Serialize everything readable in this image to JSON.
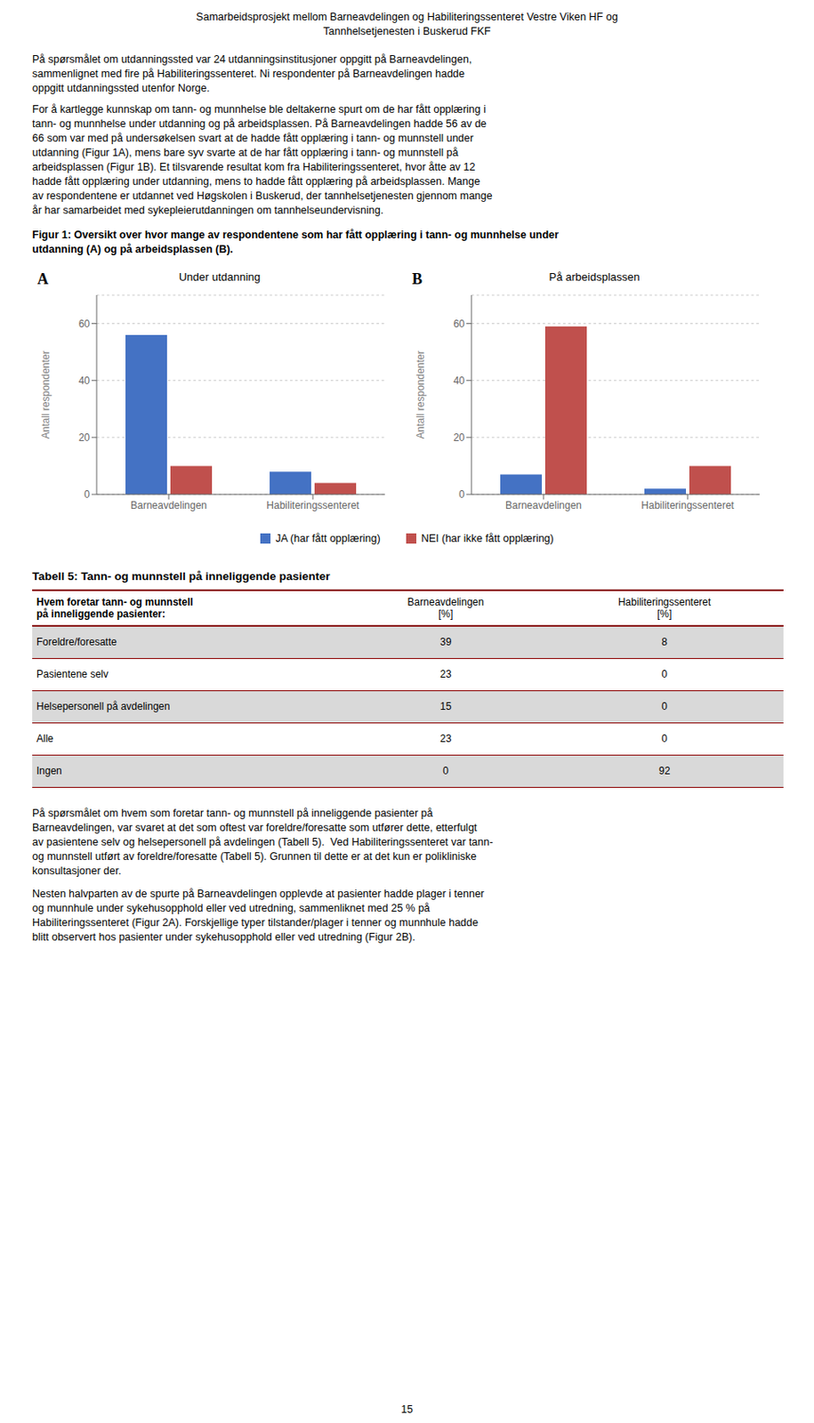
{
  "title": [
    "Samarbeidsprosjekt mellom Barneavdelingen og Habiliteringssenteret Vestre Viken HF og",
    "Tannhelsetjenesten i Buskerud FKF"
  ],
  "paragraphs_before": [
    [
      "På spørsmålet om utdanningssted var 24 utdanningsinstitusjoner oppgitt på Barneavdelingen,",
      "sammenlignet med fire på Habiliteringssenteret. Ni respondenter på Barneavdelingen hadde",
      "oppgitt utdanningssted utenfor Norge."
    ],
    [
      "For å kartlegge kunnskap om tann- og munnhelse ble deltakerne spurt om de har fått opplæring i",
      "tann- og munnhelse under utdanning og på arbeidsplassen. På Barneavdelingen hadde 56 av de",
      "66 som var med på undersøkelsen svart at de hadde fått opplæring i tann- og munnstell under",
      "utdanning (Figur 1A), mens bare syv svarte at de har fått opplæring i tann- og munnstell på",
      "arbeidsplassen (Figur 1B). Et tilsvarende resultat kom fra Habiliteringssenteret, hvor åtte av 12",
      "hadde fått opplæring under utdanning, mens to hadde fått opplæring på arbeidsplassen. Mange",
      "av respondentene er utdannet ved Høgskolen i Buskerud, der tannhelsetjenesten gjennom mange",
      "år har samarbeidet med sykepleierutdanningen om tannhelseundervisning."
    ]
  ],
  "caption": [
    "Figur 1: Oversikt over hvor mange av respondentene som har fått opplæring i tann- og munnhelse under",
    "utdanning (A) og på arbeidsplassen (B)."
  ],
  "chart_data": [
    {
      "type": "bar",
      "title": "Under utdanning",
      "annotations": [
        "A"
      ],
      "categories": [
        "Barneavdelingen",
        "Habiliteringssenteret"
      ],
      "y_label": "Antall respondenter",
      "series": [
        {
          "name": "JA (har fått opplæring)",
          "color": "#4472C4",
          "values": [
            56,
            8
          ]
        },
        {
          "name": "NEI (har ikke fått opplæring)",
          "color": "#C0504D",
          "values": [
            10,
            4
          ]
        }
      ],
      "ylim": [
        0,
        70
      ],
      "yticks": [
        0,
        20,
        40,
        60
      ],
      "grid": true,
      "legend": "bottom"
    },
    {
      "type": "bar",
      "title": "På arbeidsplassen",
      "annotations": [
        "B"
      ],
      "categories": [
        "Barneavdelingen",
        "Habiliteringssenteret"
      ],
      "y_label": "Antall respondenter",
      "series": [
        {
          "name": "JA (har fått opplæring)",
          "color": "#4472C4",
          "values": [
            7,
            2
          ]
        },
        {
          "name": "NEI (har ikke fått opplæring)",
          "color": "#C0504D",
          "values": [
            59,
            10
          ]
        }
      ],
      "ylim": [
        0,
        70
      ],
      "yticks": [
        0,
        20,
        40,
        60
      ],
      "grid": true,
      "legend": "bottom"
    }
  ],
  "table": {
    "title": "Tabell 5: Tann- og munnstell på inneliggende pasienter",
    "header": [
      [
        "Hvem foretar tann- og munnstell",
        "på inneliggende pasienter:"
      ],
      [
        "Barneavdelingen",
        "[%]"
      ],
      [
        "Habiliteringssenteret",
        "[%]"
      ]
    ],
    "rows": [
      [
        "Foreldre/foresatte",
        "39",
        "8"
      ],
      [
        "Pasientene selv",
        "23",
        "0"
      ],
      [
        "Helsepersonell på avdelingen",
        "15",
        "0"
      ],
      [
        "Alle",
        "23",
        "0"
      ],
      [
        "Ingen",
        "0",
        "92"
      ]
    ]
  },
  "paragraphs_after": [
    [
      "På spørsmålet om hvem som foretar tann- og munnstell på inneliggende pasienter på",
      "Barneavdelingen, var svaret at det som oftest var foreldre/foresatte som utfører dette, etterfulgt",
      "av pasientene selv og helsepersonell på avdelingen (Tabell 5).  Ved Habiliteringssenteret var tann-",
      "og munnstell utført av foreldre/foresatte (Tabell 5). Grunnen til dette er at det kun er polikliniske",
      "konsultasjoner der."
    ],
    [
      "Nesten halvparten av de spurte på Barneavdelingen opplevde at pasienter hadde plager i tenner",
      "og munnhule under sykehusopphold eller ved utredning, sammenliknet med 25 % på",
      "Habiliteringssenteret (Figur 2A). Forskjellige typer tilstander/plager i tenner og munnhule hadde",
      "blitt observert hos pasienter under sykehusopphold eller ved utredning (Figur 2B)."
    ]
  ],
  "page_number": "15"
}
